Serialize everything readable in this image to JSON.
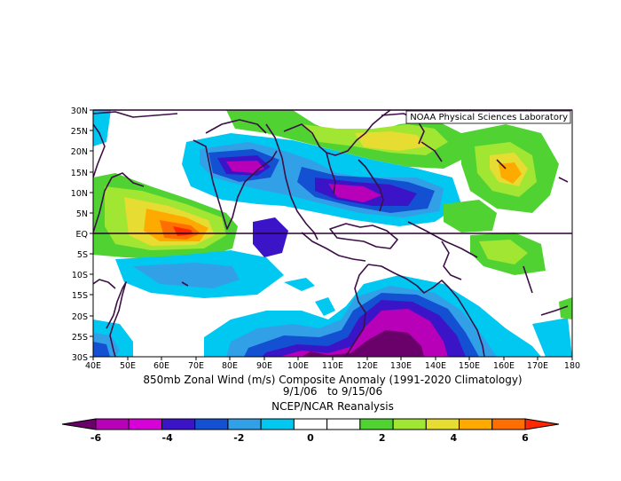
{
  "title": "850mb Zonal Wind (m/s) Composite Anomaly (1991-2020 Climatology)",
  "date_range": "9/1/06   to 9/15/06",
  "source": "NCEP/NCAR Reanalysis",
  "credit": "NOAA Physical Sciences Laboratory",
  "lat_labels": [
    "30N",
    "25N",
    "20N",
    "15N",
    "10N",
    "5N",
    "EQ",
    "5S",
    "10S",
    "15S",
    "20S",
    "25S",
    "30S"
  ],
  "lon_labels": [
    "40E",
    "50E",
    "60E",
    "70E",
    "80E",
    "90E",
    "100E",
    "110E",
    "120E",
    "130E",
    "140E",
    "150E",
    "160E",
    "170E",
    "180"
  ],
  "colorbar": {
    "tick_labels": [
      "-6",
      "-4",
      "-2",
      "0",
      "2",
      "4",
      "6"
    ],
    "colors": [
      "#6a006a",
      "#b800b8",
      "#d800d8",
      "#3c14c8",
      "#1450d2",
      "#32a0e6",
      "#00c8f0",
      "#ffffff",
      "#ffffff",
      "#50d232",
      "#a0e632",
      "#e6dc32",
      "#ffaa00",
      "#ff6e00",
      "#ff2800"
    ]
  }
}
